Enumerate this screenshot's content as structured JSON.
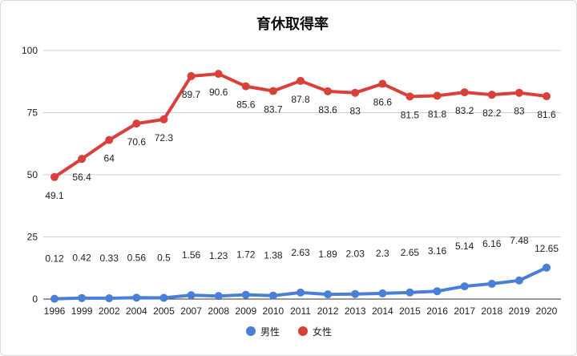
{
  "chart_data": {
    "type": "line",
    "title": "育休取得率",
    "xlabel": "",
    "ylabel": "",
    "ylim": [
      0,
      100
    ],
    "yticks": [
      "0",
      "25",
      "50",
      "75",
      "100"
    ],
    "grid": true,
    "legend_position": "bottom",
    "categories": [
      "1996",
      "1999",
      "2002",
      "2004",
      "2005",
      "2007",
      "2008",
      "2009",
      "2010",
      "2011",
      "2012",
      "2013",
      "2014",
      "2015",
      "2016",
      "2017",
      "2018",
      "2019",
      "2020"
    ],
    "series": [
      {
        "name": "男性",
        "color": "#4a7fd8",
        "values": [
          0.12,
          0.42,
          0.33,
          0.56,
          0.5,
          1.56,
          1.23,
          1.72,
          1.38,
          2.63,
          1.89,
          2.03,
          2.3,
          2.65,
          3.16,
          5.14,
          6.16,
          7.48,
          12.65
        ],
        "labels": [
          "0.12",
          "0.42",
          "0.33",
          "0.56",
          "0.5",
          "1.56",
          "1.23",
          "1.72",
          "1.38",
          "2.63",
          "1.89",
          "2.03",
          "2.3",
          "2.65",
          "3.16",
          "5.14",
          "6.16",
          "7.48",
          "12.65"
        ]
      },
      {
        "name": "女性",
        "color": "#d9403a",
        "values": [
          49.1,
          56.4,
          64,
          70.6,
          72.3,
          89.7,
          90.6,
          85.6,
          83.7,
          87.8,
          83.6,
          83,
          86.6,
          81.5,
          81.8,
          83.2,
          82.2,
          83,
          81.6
        ],
        "labels": [
          "49.1",
          "56.4",
          "64",
          "70.6",
          "72.3",
          "89.7",
          "90.6",
          "85.6",
          "83.7",
          "87.8",
          "83.6",
          "83",
          "86.6",
          "81.5",
          "81.8",
          "83.2",
          "82.2",
          "83",
          "81.6"
        ]
      }
    ]
  }
}
